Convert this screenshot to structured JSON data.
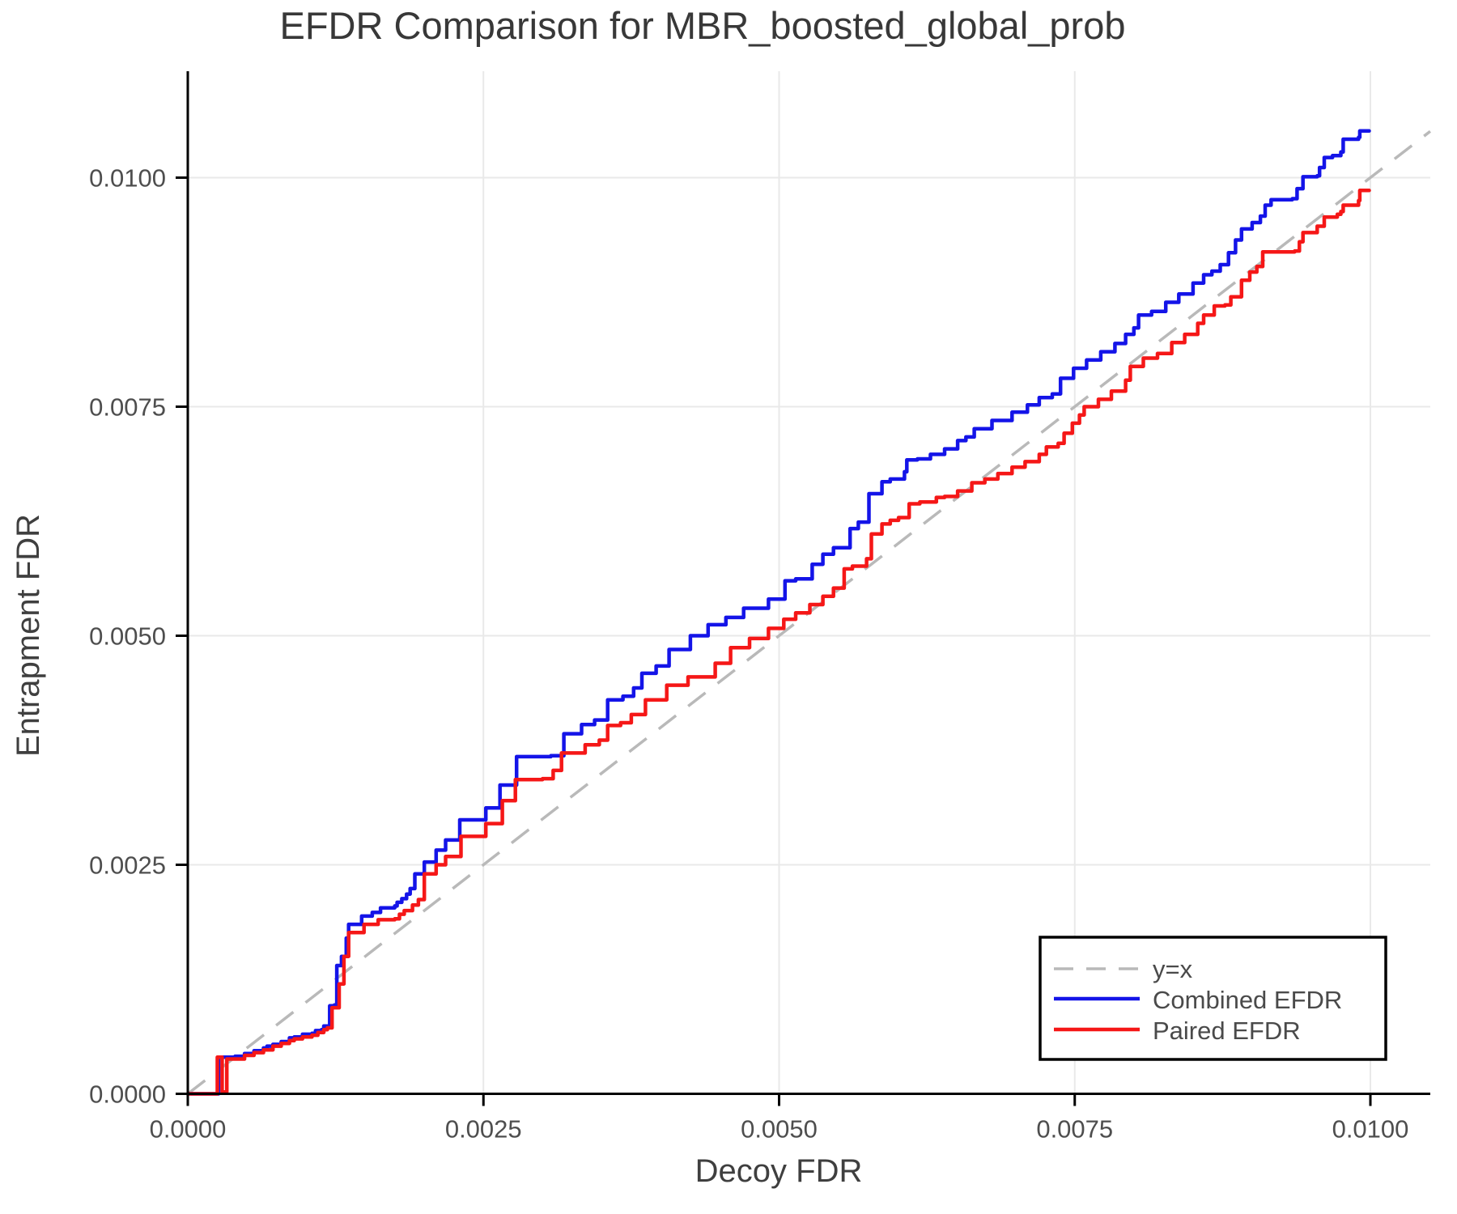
{
  "title": "EFDR Comparison for MBR_boosted_global_prob",
  "styles": {
    "background": "#ffffff",
    "grid_color": "#e9e9e9",
    "spine_color": "#000000",
    "tick_label_color": "#4e4e4e",
    "axis_label_color": "#3f3f3f",
    "title_color": "#383838",
    "legend_text_color": "#4a4a4a",
    "legend_border_color": "#000000",
    "diagonal_color": "#b9b9b9",
    "combined_color": "#1414e8",
    "paired_color": "#f51717"
  },
  "chart_data": {
    "type": "line",
    "title": "EFDR Comparison for MBR_boosted_global_prob",
    "xlabel": "Decoy FDR",
    "ylabel": "Entrapment FDR",
    "grid": true,
    "xlim": [
      0,
      0.010506
    ],
    "ylim": [
      0,
      0.011161
    ],
    "x_ticks": {
      "values": [
        0.0,
        0.0025,
        0.005,
        0.0075,
        0.01
      ],
      "labels": [
        "0.0000",
        "0.0025",
        "0.0050",
        "0.0075",
        "0.0100"
      ]
    },
    "y_ticks": {
      "values": [
        0.0,
        0.0025,
        0.005,
        0.0075,
        0.01
      ],
      "labels": [
        "0.0000",
        "0.0025",
        "0.0050",
        "0.0075",
        "0.0100"
      ]
    },
    "reference_line": {
      "label": "y=x",
      "from": [
        0,
        0
      ],
      "to": [
        0.010506,
        0.010506
      ],
      "style": "dashed",
      "color": "#b9b9b9"
    },
    "legend": {
      "position": "lower right",
      "items": [
        {
          "label": "y=x",
          "color": "#b9b9b9",
          "style": "dashed"
        },
        {
          "label": "Combined EFDR",
          "color": "#1414e8",
          "style": "solid"
        },
        {
          "label": "Paired EFDR",
          "color": "#f51717",
          "style": "solid"
        }
      ]
    },
    "series": [
      {
        "name": "Combined EFDR",
        "color": "#1414e8",
        "step": "after",
        "points": [
          [
            0,
            0
          ],
          [
            0.00026,
            0
          ],
          [
            0.00026,
            0.0004
          ],
          [
            0.0004,
            0.00041
          ],
          [
            0.00048,
            0.00044
          ],
          [
            0.00056,
            0.00047
          ],
          [
            0.00064,
            0.0005
          ],
          [
            0.00067,
            0.00052
          ],
          [
            0.00072,
            0.00054
          ],
          [
            0.00079,
            0.00057
          ],
          [
            0.00086,
            0.00061
          ],
          [
            0.0009,
            0.00062
          ],
          [
            0.00097,
            0.00065
          ],
          [
            0.00105,
            0.00066
          ],
          [
            0.00108,
            0.00069
          ],
          [
            0.00113,
            0.0007
          ],
          [
            0.00115,
            0.00074
          ],
          [
            0.0012,
            0.00096
          ],
          [
            0.00124,
            0.00097
          ],
          [
            0.00126,
            0.0014
          ],
          [
            0.0013,
            0.0015
          ],
          [
            0.00134,
            0.0017
          ],
          [
            0.00136,
            0.00185
          ],
          [
            0.00147,
            0.00194
          ],
          [
            0.00156,
            0.00198
          ],
          [
            0.00163,
            0.00203
          ],
          [
            0.00175,
            0.00205
          ],
          [
            0.00177,
            0.00209
          ],
          [
            0.00181,
            0.00213
          ],
          [
            0.00185,
            0.00218
          ],
          [
            0.00188,
            0.00224
          ],
          [
            0.00192,
            0.0024
          ],
          [
            0.002,
            0.00253
          ],
          [
            0.0021,
            0.00266
          ],
          [
            0.00218,
            0.00277
          ],
          [
            0.0023,
            0.00299
          ],
          [
            0.00252,
            0.00312
          ],
          [
            0.00264,
            0.00337
          ],
          [
            0.00278,
            0.00368
          ],
          [
            0.00307,
            0.00369
          ],
          [
            0.00318,
            0.00393
          ],
          [
            0.00333,
            0.00403
          ],
          [
            0.00344,
            0.00408
          ],
          [
            0.00355,
            0.0043
          ],
          [
            0.00368,
            0.00434
          ],
          [
            0.00377,
            0.00443
          ],
          [
            0.00384,
            0.00459
          ],
          [
            0.00396,
            0.00467
          ],
          [
            0.00407,
            0.00485
          ],
          [
            0.00425,
            0.005
          ],
          [
            0.0044,
            0.00512
          ],
          [
            0.00455,
            0.0052
          ],
          [
            0.0047,
            0.0053
          ],
          [
            0.00491,
            0.0054
          ],
          [
            0.00505,
            0.0056
          ],
          [
            0.00514,
            0.00562
          ],
          [
            0.00528,
            0.00578
          ],
          [
            0.00537,
            0.00589
          ],
          [
            0.00546,
            0.00596
          ],
          [
            0.0056,
            0.00617
          ],
          [
            0.00567,
            0.00624
          ],
          [
            0.00576,
            0.00655
          ],
          [
            0.00587,
            0.00668
          ],
          [
            0.00594,
            0.00671
          ],
          [
            0.00606,
            0.00679
          ],
          [
            0.00608,
            0.00692
          ],
          [
            0.00617,
            0.00693
          ],
          [
            0.00628,
            0.00698
          ],
          [
            0.0064,
            0.00704
          ],
          [
            0.00651,
            0.00713
          ],
          [
            0.00658,
            0.00717
          ],
          [
            0.00665,
            0.00726
          ],
          [
            0.0068,
            0.00735
          ],
          [
            0.00697,
            0.00744
          ],
          [
            0.0071,
            0.00752
          ],
          [
            0.0072,
            0.0076
          ],
          [
            0.00731,
            0.00764
          ],
          [
            0.00738,
            0.00781
          ],
          [
            0.00749,
            0.00792
          ],
          [
            0.0076,
            0.00801
          ],
          [
            0.00772,
            0.0081
          ],
          [
            0.00784,
            0.00819
          ],
          [
            0.00793,
            0.00829
          ],
          [
            0.008,
            0.00836
          ],
          [
            0.00804,
            0.0085
          ],
          [
            0.00815,
            0.00854
          ],
          [
            0.00827,
            0.00864
          ],
          [
            0.00838,
            0.00873
          ],
          [
            0.0085,
            0.00885
          ],
          [
            0.00859,
            0.00894
          ],
          [
            0.00866,
            0.00898
          ],
          [
            0.00873,
            0.00905
          ],
          [
            0.0088,
            0.00918
          ],
          [
            0.00886,
            0.00932
          ],
          [
            0.00891,
            0.00944
          ],
          [
            0.009,
            0.00951
          ],
          [
            0.00907,
            0.00958
          ],
          [
            0.00911,
            0.0097
          ],
          [
            0.00916,
            0.00976
          ],
          [
            0.00934,
            0.00977
          ],
          [
            0.00938,
            0.00988
          ],
          [
            0.00943,
            0.01001
          ],
          [
            0.00955,
            0.01002
          ],
          [
            0.00957,
            0.01011
          ],
          [
            0.00961,
            0.01022
          ],
          [
            0.00968,
            0.01024
          ],
          [
            0.00975,
            0.01028
          ],
          [
            0.00977,
            0.01042
          ],
          [
            0.0099,
            0.01044
          ],
          [
            0.00991,
            0.01051
          ],
          [
            0.00999,
            0.01051
          ]
        ]
      },
      {
        "name": "Paired EFDR",
        "color": "#f51717",
        "step": "after",
        "points": [
          [
            0,
            0
          ],
          [
            0.00024,
            0
          ],
          [
            0.00025,
            0.0004
          ],
          [
            0.00028,
            0.0004
          ],
          [
            0.00029,
            2e-05
          ],
          [
            0.00032,
            2e-05
          ],
          [
            0.00033,
            0.00038
          ],
          [
            0.0004,
            0.00038
          ],
          [
            0.00048,
            0.00042
          ],
          [
            0.00056,
            0.00045
          ],
          [
            0.00064,
            0.00048
          ],
          [
            0.00072,
            0.00052
          ],
          [
            0.00079,
            0.00055
          ],
          [
            0.00086,
            0.00058
          ],
          [
            0.0009,
            0.0006
          ],
          [
            0.00097,
            0.00062
          ],
          [
            0.00105,
            0.00064
          ],
          [
            0.0011,
            0.00067
          ],
          [
            0.00115,
            0.0007
          ],
          [
            0.00118,
            0.00072
          ],
          [
            0.00122,
            0.00094
          ],
          [
            0.00128,
            0.0012
          ],
          [
            0.00132,
            0.0015
          ],
          [
            0.00136,
            0.00176
          ],
          [
            0.00149,
            0.00185
          ],
          [
            0.00161,
            0.0019
          ],
          [
            0.00175,
            0.00191
          ],
          [
            0.00179,
            0.00196
          ],
          [
            0.00183,
            0.002
          ],
          [
            0.0019,
            0.00206
          ],
          [
            0.00195,
            0.00212
          ],
          [
            0.002,
            0.0024
          ],
          [
            0.0021,
            0.0025
          ],
          [
            0.00218,
            0.00259
          ],
          [
            0.00231,
            0.00281
          ],
          [
            0.00252,
            0.00295
          ],
          [
            0.00266,
            0.0032
          ],
          [
            0.00277,
            0.00343
          ],
          [
            0.003,
            0.00344
          ],
          [
            0.00309,
            0.00353
          ],
          [
            0.00316,
            0.00372
          ],
          [
            0.00336,
            0.00381
          ],
          [
            0.00348,
            0.00386
          ],
          [
            0.00355,
            0.00402
          ],
          [
            0.00366,
            0.00405
          ],
          [
            0.00375,
            0.00414
          ],
          [
            0.00387,
            0.0043
          ],
          [
            0.00405,
            0.00446
          ],
          [
            0.00423,
            0.00455
          ],
          [
            0.00446,
            0.0047
          ],
          [
            0.00459,
            0.00487
          ],
          [
            0.00475,
            0.00497
          ],
          [
            0.00491,
            0.00508
          ],
          [
            0.00504,
            0.00518
          ],
          [
            0.00514,
            0.00525
          ],
          [
            0.00526,
            0.00534
          ],
          [
            0.00537,
            0.00543
          ],
          [
            0.00546,
            0.00552
          ],
          [
            0.00555,
            0.00573
          ],
          [
            0.00562,
            0.00576
          ],
          [
            0.00574,
            0.00584
          ],
          [
            0.00578,
            0.00611
          ],
          [
            0.00587,
            0.00622
          ],
          [
            0.00594,
            0.00626
          ],
          [
            0.00601,
            0.00629
          ],
          [
            0.0061,
            0.00644
          ],
          [
            0.00619,
            0.00646
          ],
          [
            0.00633,
            0.00651
          ],
          [
            0.0064,
            0.00652
          ],
          [
            0.00651,
            0.00658
          ],
          [
            0.00663,
            0.00667
          ],
          [
            0.00674,
            0.00671
          ],
          [
            0.00685,
            0.00677
          ],
          [
            0.00697,
            0.00684
          ],
          [
            0.00708,
            0.0069
          ],
          [
            0.0072,
            0.00698
          ],
          [
            0.00726,
            0.00706
          ],
          [
            0.00736,
            0.0071
          ],
          [
            0.00741,
            0.00721
          ],
          [
            0.00748,
            0.00732
          ],
          [
            0.00754,
            0.00741
          ],
          [
            0.00758,
            0.0075
          ],
          [
            0.0077,
            0.00758
          ],
          [
            0.00781,
            0.00767
          ],
          [
            0.00793,
            0.00779
          ],
          [
            0.00797,
            0.00794
          ],
          [
            0.00808,
            0.00803
          ],
          [
            0.0082,
            0.00808
          ],
          [
            0.00832,
            0.0082
          ],
          [
            0.00843,
            0.00829
          ],
          [
            0.00854,
            0.00841
          ],
          [
            0.00859,
            0.0085
          ],
          [
            0.00868,
            0.0086
          ],
          [
            0.00877,
            0.00861
          ],
          [
            0.00882,
            0.0087
          ],
          [
            0.00891,
            0.00888
          ],
          [
            0.00898,
            0.00897
          ],
          [
            0.00904,
            0.00903
          ],
          [
            0.00909,
            0.00919
          ],
          [
            0.00936,
            0.0092
          ],
          [
            0.0094,
            0.0093
          ],
          [
            0.00943,
            0.0094
          ],
          [
            0.00955,
            0.00947
          ],
          [
            0.00961,
            0.00957
          ],
          [
            0.00972,
            0.0096
          ],
          [
            0.00975,
            0.00963
          ],
          [
            0.00977,
            0.0097
          ],
          [
            0.0099,
            0.00975
          ],
          [
            0.00991,
            0.00986
          ],
          [
            0.00999,
            0.00986
          ]
        ]
      }
    ]
  }
}
